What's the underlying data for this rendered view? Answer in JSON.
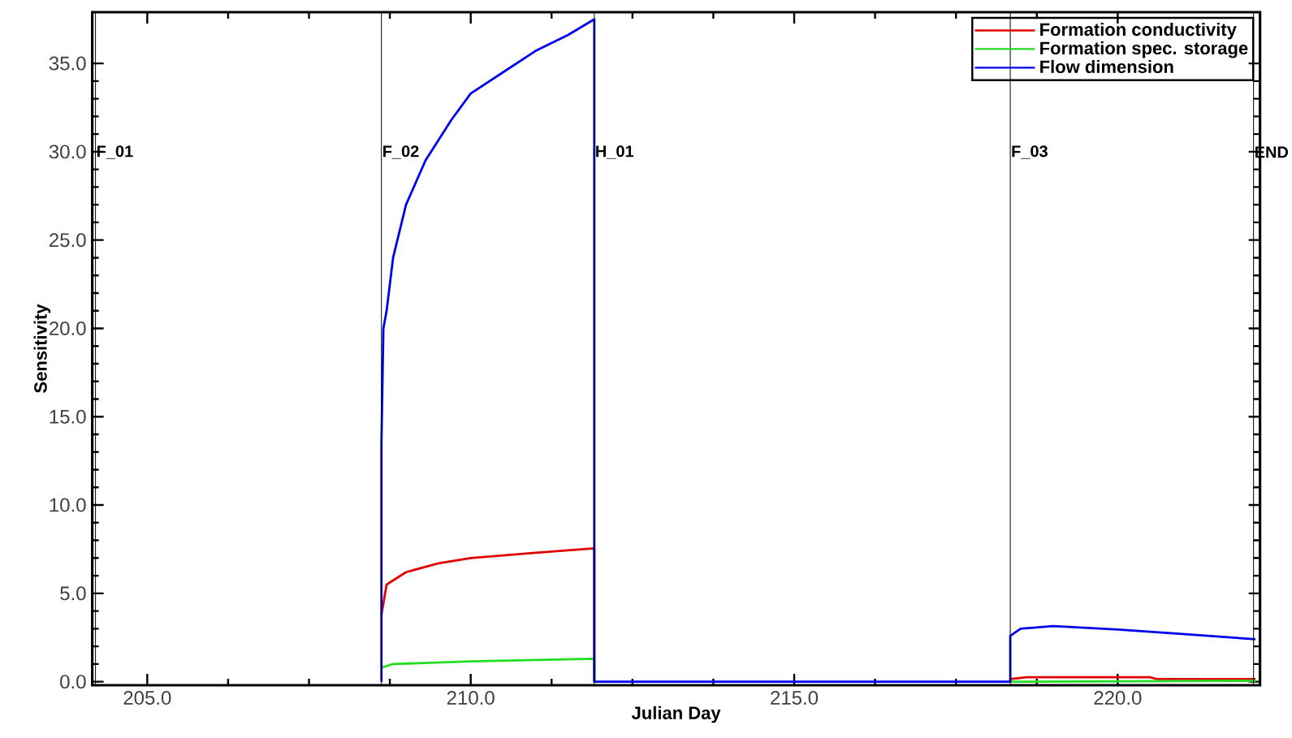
{
  "chart_data": {
    "type": "line",
    "xlabel": "Julian Day",
    "ylabel": "Sensitivity",
    "xlim": [
      204.15,
      222.2
    ],
    "ylim": [
      -0.2,
      37.9
    ],
    "xticks": [
      {
        "value": 205,
        "label": "205.0"
      },
      {
        "value": 210,
        "label": "210.0"
      },
      {
        "value": 215,
        "label": "215.0"
      },
      {
        "value": 220,
        "label": "220.0"
      }
    ],
    "yticks": [
      {
        "value": 0,
        "label": "0.0"
      },
      {
        "value": 5,
        "label": "5.0"
      },
      {
        "value": 10,
        "label": "10.0"
      },
      {
        "value": 15,
        "label": "15.0"
      },
      {
        "value": 20,
        "label": "20.0"
      },
      {
        "value": 25,
        "label": "25.0"
      },
      {
        "value": 30,
        "label": "30.0"
      },
      {
        "value": 35,
        "label": "35.0"
      }
    ],
    "legend": "top right",
    "marker": "none",
    "line_style": "solid",
    "series": [
      {
        "name": "Formation  conductivity",
        "color": "#e00000",
        "x": [
          208.62,
          208.7,
          209.0,
          209.5,
          210.0,
          211.0,
          211.91,
          211.91,
          212.0,
          218.3,
          218.34,
          218.34,
          218.6,
          220.5,
          220.6,
          222.13
        ],
        "values": [
          3.8,
          5.5,
          6.2,
          6.7,
          7.0,
          7.3,
          7.55,
          0,
          null,
          null,
          0,
          0.15,
          0.25,
          0.25,
          0.15,
          0.15
        ]
      },
      {
        "name": "Formation  spec. storage",
        "color": "#22dd22",
        "x": [
          208.62,
          208.8,
          210.0,
          211.91,
          211.91,
          212.0,
          218.3,
          218.34,
          222.13
        ],
        "values": [
          0.8,
          1.0,
          1.15,
          1.3,
          0,
          null,
          null,
          0,
          0.05
        ]
      },
      {
        "name": "Flow  dimension",
        "color": "#0000ee",
        "x": [
          208.62,
          208.62,
          208.65,
          208.7,
          208.8,
          209.0,
          209.3,
          209.7,
          210.0,
          210.5,
          211.0,
          211.5,
          211.91,
          211.91,
          218.34,
          218.34,
          218.5,
          219.0,
          220.0,
          221.0,
          222.13
        ],
        "values": [
          0,
          13.5,
          20,
          21,
          24,
          27,
          29.5,
          31.8,
          33.3,
          34.5,
          35.7,
          36.6,
          37.5,
          0,
          0,
          2.6,
          3.0,
          3.15,
          2.95,
          2.7,
          2.4
        ]
      }
    ],
    "ref_lines": [
      {
        "axis": "x",
        "value": 204.2,
        "label": "F_01",
        "color": "#000000"
      },
      {
        "axis": "x",
        "value": 208.62,
        "label": "F_02",
        "color": "#000000"
      },
      {
        "axis": "x",
        "value": 211.91,
        "label": "H_01",
        "color": "#000000"
      },
      {
        "axis": "x",
        "value": 218.34,
        "label": "F_03",
        "color": "#000000"
      },
      {
        "axis": "x",
        "value": 222.1,
        "label": "END",
        "color": "#000000"
      }
    ]
  }
}
